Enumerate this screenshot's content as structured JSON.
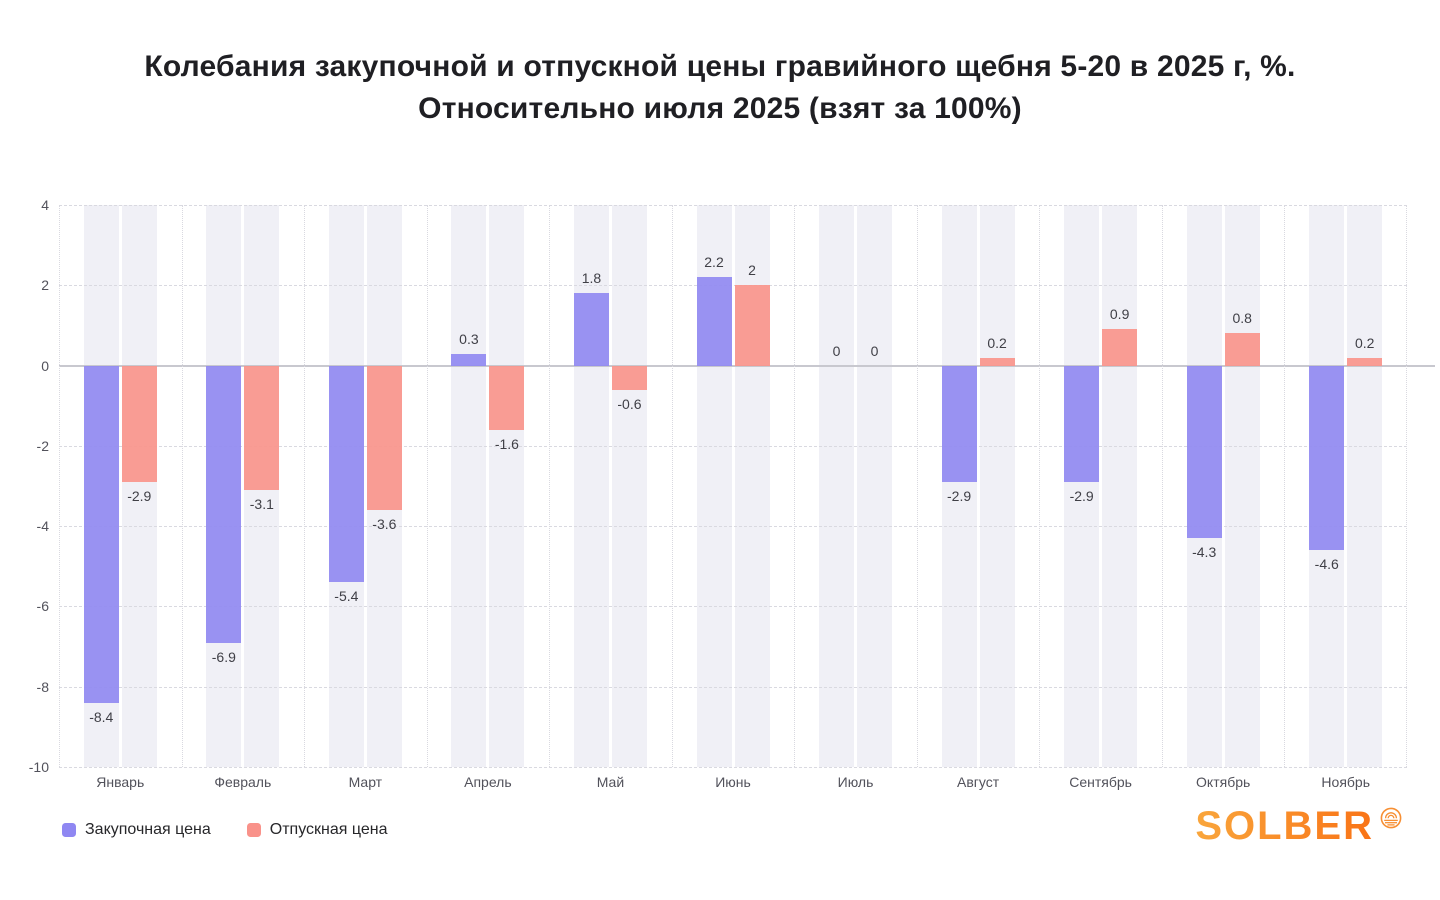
{
  "chart_data": {
    "type": "bar",
    "title": "Колебания закупочной и отпускной цены гравийного щебня 5-20 в 2025 г, %.",
    "subtitle": "Относительно июля 2025 (взят за 100%)",
    "categories": [
      "Январь",
      "Февраль",
      "Март",
      "Апрель",
      "Май",
      "Июнь",
      "Июль",
      "Август",
      "Сентябрь",
      "Октябрь",
      "Ноябрь"
    ],
    "series": [
      {
        "name": "Закупочная цена",
        "color": "#8f87f2",
        "values": [
          -8.4,
          -6.9,
          -5.4,
          0.3,
          1.8,
          2.2,
          0,
          -2.9,
          -2.9,
          -4.3,
          -4.6
        ]
      },
      {
        "name": "Отпускная цена",
        "color": "#f9928a",
        "values": [
          -2.9,
          -3.1,
          -3.6,
          -1.6,
          -0.6,
          2,
          0,
          0.2,
          0.9,
          0.8,
          0.2
        ]
      }
    ],
    "ylim": [
      -10,
      4
    ],
    "yticks": [
      4,
      2,
      0,
      -2,
      -4,
      -6,
      -8,
      -10
    ],
    "bar_opacity": 0.9,
    "grid": true,
    "legend_position": "bottom-left",
    "band_color": "#f0f0f6",
    "grid_color": "#d9d9e0",
    "zero_line_color": "#c8c8cf",
    "axis_text_color": "#52525b",
    "value_label_color": "#3f3f46"
  },
  "branding": {
    "logo_text": "SOLBER"
  }
}
